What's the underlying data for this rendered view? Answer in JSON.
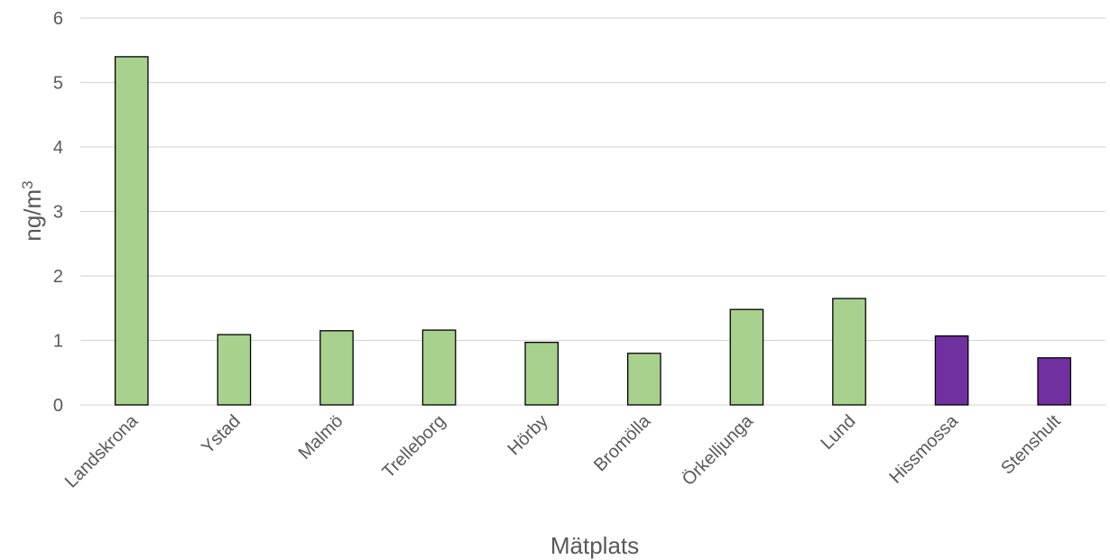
{
  "chart_data": {
    "type": "bar",
    "title": "",
    "xlabel": "Mätplats",
    "ylabel": {
      "base": "ng/m",
      "sup": "3"
    },
    "ylim": [
      0,
      6
    ],
    "yticks": [
      0,
      1,
      2,
      3,
      4,
      5,
      6
    ],
    "grid": true,
    "categories": [
      "Landskrona",
      "Ystad",
      "Malmö",
      "Trelleborg",
      "Hörby",
      "Bromölla",
      "Örkelljunga",
      "Lund",
      "Hissmossa",
      "Stenshult"
    ],
    "values": [
      5.4,
      1.09,
      1.15,
      1.16,
      0.97,
      0.8,
      1.48,
      1.65,
      1.07,
      0.73
    ],
    "bar_colors": [
      "#a9d18e",
      "#a9d18e",
      "#a9d18e",
      "#a9d18e",
      "#a9d18e",
      "#a9d18e",
      "#a9d18e",
      "#a9d18e",
      "#7030a0",
      "#7030a0"
    ]
  }
}
